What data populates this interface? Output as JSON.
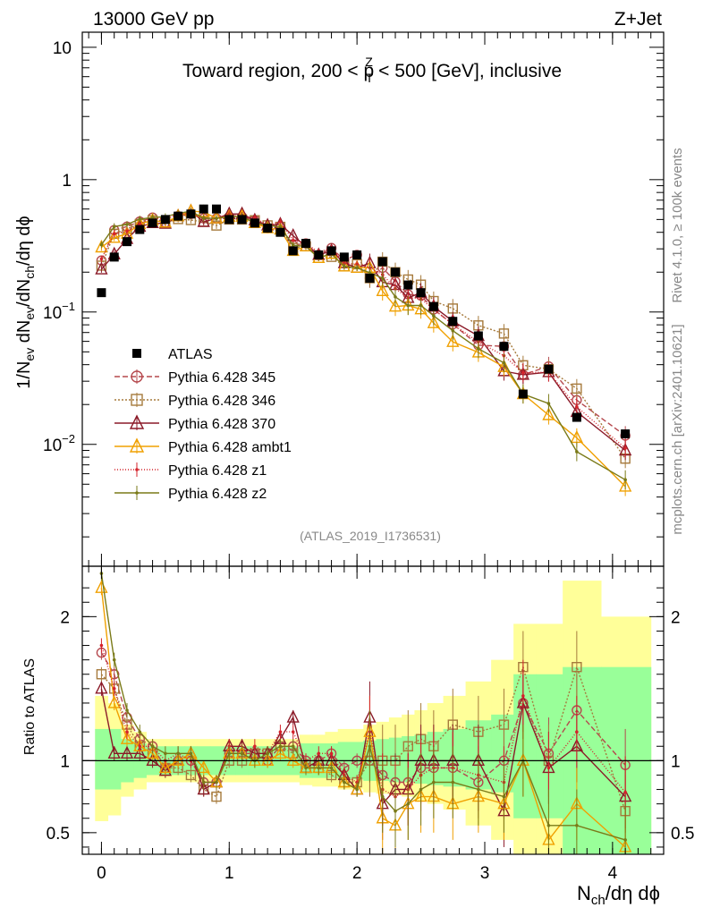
{
  "header": {
    "left": "13000 GeV pp",
    "right": "Z+Jet"
  },
  "side_text": {
    "rivet": "Rivet 4.1.0, ≥ 100k events",
    "mcplots": "mcplots.cern.ch [arXiv:2401.10621]"
  },
  "chart_data": {
    "type": "scatter",
    "title": "Toward region, 200 < p_T^Z < 500 [GeV], inclusive",
    "title_parts": {
      "a": "Toward region, 200 < p",
      "sup": "Z",
      "sub": "T",
      "b": " < 500 [GeV], inclusive"
    },
    "analysis": "(ATLAS_2019_I1736531)",
    "xlabel": "N_ch/dη dϕ",
    "xlabel_parts": {
      "a": "N",
      "sub": "ch",
      "b": "/dη dϕ"
    },
    "ylabel": "1/N_ev dN_ev/dN_ch/dη dϕ",
    "ylabel_parts": {
      "p1": "1/N",
      "s1": "ev",
      "p2": " dN",
      "s2": "ev",
      "p3": "/dN",
      "s3": "ch",
      "p4": "/dη dϕ"
    },
    "ratio_ylabel": "Ratio to ATLAS",
    "xlim": [
      -0.15,
      4.4
    ],
    "ylim": [
      0.0012,
      13
    ],
    "ratio_ylim": [
      0.35,
      2.35
    ],
    "xticks": [
      0,
      1,
      2,
      3,
      4
    ],
    "yticks": [
      {
        "value": 10,
        "label": "10"
      },
      {
        "value": 1,
        "label": "1"
      },
      {
        "value": 0.1,
        "base": "10",
        "exp": "−1"
      },
      {
        "value": 0.01,
        "base": "10",
        "exp": "−2"
      }
    ],
    "ratio_yticks": [
      0.5,
      1,
      2
    ],
    "x": [
      0.0,
      0.1,
      0.2,
      0.3,
      0.4,
      0.5,
      0.6,
      0.7,
      0.8,
      0.9,
      1.0,
      1.1,
      1.2,
      1.3,
      1.4,
      1.5,
      1.6,
      1.7,
      1.8,
      1.9,
      2.0,
      2.1,
      2.2,
      2.3,
      2.4,
      2.5,
      2.6,
      2.75,
      2.95,
      3.15,
      3.3,
      3.5,
      3.72,
      4.1
    ],
    "data": {
      "name": "ATLAS",
      "values": [
        0.14,
        0.26,
        0.34,
        0.42,
        0.47,
        0.5,
        0.53,
        0.55,
        0.6,
        0.6,
        0.5,
        0.5,
        0.47,
        0.43,
        0.4,
        0.29,
        0.33,
        0.27,
        0.29,
        0.26,
        0.27,
        0.18,
        0.24,
        0.2,
        0.16,
        0.14,
        0.11,
        0.085,
        0.066,
        0.055,
        0.024,
        0.037,
        0.016,
        0.012
      ],
      "band_inner": [
        [
          0.8,
          1.22
        ],
        [
          0.8,
          1.22
        ],
        [
          0.85,
          1.15
        ],
        [
          0.88,
          1.12
        ],
        [
          0.9,
          1.1
        ],
        [
          0.9,
          1.1
        ],
        [
          0.9,
          1.1
        ],
        [
          0.9,
          1.1
        ],
        [
          0.9,
          1.1
        ],
        [
          0.9,
          1.1
        ],
        [
          0.9,
          1.1
        ],
        [
          0.9,
          1.1
        ],
        [
          0.9,
          1.1
        ],
        [
          0.9,
          1.1
        ],
        [
          0.9,
          1.1
        ],
        [
          0.9,
          1.1
        ],
        [
          0.88,
          1.12
        ],
        [
          0.88,
          1.12
        ],
        [
          0.88,
          1.12
        ],
        [
          0.87,
          1.13
        ],
        [
          0.87,
          1.13
        ],
        [
          0.86,
          1.14
        ],
        [
          0.86,
          1.15
        ],
        [
          0.85,
          1.16
        ],
        [
          0.85,
          1.17
        ],
        [
          0.84,
          1.18
        ],
        [
          0.83,
          1.2
        ],
        [
          0.82,
          1.22
        ],
        [
          0.8,
          1.28
        ],
        [
          0.78,
          1.32
        ],
        [
          0.6,
          1.6
        ],
        [
          0.6,
          1.6
        ],
        [
          0.35,
          1.65
        ],
        [
          0.35,
          1.65
        ]
      ],
      "band_outer": [
        [
          0.58,
          1.45
        ],
        [
          0.62,
          1.4
        ],
        [
          0.75,
          1.25
        ],
        [
          0.8,
          1.2
        ],
        [
          0.85,
          1.15
        ],
        [
          0.85,
          1.15
        ],
        [
          0.85,
          1.15
        ],
        [
          0.85,
          1.15
        ],
        [
          0.85,
          1.15
        ],
        [
          0.85,
          1.15
        ],
        [
          0.85,
          1.15
        ],
        [
          0.85,
          1.15
        ],
        [
          0.85,
          1.15
        ],
        [
          0.85,
          1.15
        ],
        [
          0.85,
          1.15
        ],
        [
          0.85,
          1.15
        ],
        [
          0.83,
          1.18
        ],
        [
          0.82,
          1.18
        ],
        [
          0.82,
          1.2
        ],
        [
          0.8,
          1.22
        ],
        [
          0.8,
          1.22
        ],
        [
          0.78,
          1.25
        ],
        [
          0.77,
          1.27
        ],
        [
          0.76,
          1.3
        ],
        [
          0.75,
          1.32
        ],
        [
          0.72,
          1.35
        ],
        [
          0.7,
          1.4
        ],
        [
          0.66,
          1.45
        ],
        [
          0.55,
          1.55
        ],
        [
          0.45,
          1.7
        ],
        [
          0.35,
          1.95
        ],
        [
          0.35,
          1.95
        ],
        [
          0.35,
          2.25
        ],
        [
          0.35,
          2.0
        ]
      ]
    },
    "series": [
      {
        "name": "Pythia 6.428 345",
        "color": "#b5484d",
        "marker": "circle",
        "dash": "6,3",
        "ratio": [
          1.75,
          1.6,
          1.3,
          1.15,
          1.1,
          0.95,
          1.0,
          1.0,
          0.85,
          0.85,
          1.05,
          1.05,
          1.05,
          1.0,
          1.1,
          1.1,
          1.0,
          1.0,
          1.05,
          0.95,
          1.0,
          1.0,
          0.9,
          0.85,
          0.85,
          0.95,
          0.95,
          0.95,
          0.85,
          1.0,
          1.4,
          1.05,
          1.35,
          0.97
        ]
      },
      {
        "name": "Pythia 6.428 346",
        "color": "#a67a3c",
        "marker": "square",
        "dash": "2,2",
        "ratio": [
          1.6,
          1.5,
          1.25,
          1.1,
          1.05,
          0.95,
          0.95,
          0.9,
          0.8,
          0.75,
          1.0,
          1.0,
          1.05,
          1.05,
          1.1,
          1.05,
          0.95,
          0.95,
          0.9,
          0.85,
          0.85,
          1.0,
          1.0,
          1.0,
          1.1,
          1.15,
          1.1,
          1.25,
          1.2,
          1.25,
          1.65,
          1.0,
          1.65,
          0.65
        ]
      },
      {
        "name": "Pythia 6.428 370",
        "color": "#8b1a28",
        "marker": "triangle",
        "dash": "",
        "ratio": [
          1.5,
          1.05,
          1.05,
          1.05,
          1.0,
          0.93,
          1.0,
          1.05,
          0.8,
          0.85,
          1.1,
          1.1,
          1.05,
          1.05,
          1.15,
          1.3,
          0.95,
          1.0,
          1.0,
          0.9,
          0.8,
          1.3,
          0.7,
          0.8,
          0.8,
          1.0,
          1.0,
          1.0,
          1.0,
          0.65,
          1.4,
          0.95,
          1.1,
          0.75
        ]
      },
      {
        "name": "Pythia 6.428 ambt1",
        "color": "#f0a000",
        "marker": "triangle",
        "dash": "",
        "ratio": [
          2.2,
          1.4,
          1.15,
          1.1,
          1.05,
          0.95,
          1.0,
          1.05,
          0.95,
          0.85,
          1.05,
          1.05,
          1.0,
          1.0,
          1.05,
          1.0,
          0.95,
          0.95,
          0.95,
          0.85,
          0.8,
          1.2,
          0.6,
          0.55,
          0.7,
          0.75,
          0.75,
          0.7,
          0.75,
          0.7,
          1.0,
          0.45,
          0.7,
          0.4
        ]
      },
      {
        "name": "Pythia 6.428 z1",
        "color": "#d4232b",
        "marker": "dot",
        "dash": "1,2",
        "ratio": [
          1.8,
          1.5,
          1.2,
          1.1,
          1.1,
          1.0,
          1.05,
          1.0,
          0.85,
          0.85,
          1.1,
          1.05,
          1.1,
          1.05,
          1.2,
          1.2,
          1.0,
          1.05,
          1.05,
          0.9,
          0.85,
          1.2,
          0.8,
          0.75,
          0.8,
          0.9,
          0.95,
          0.95,
          0.9,
          0.85,
          1.45,
          0.95,
          1.2,
          0.78
        ]
      },
      {
        "name": "Pythia 6.428 z2",
        "color": "#7a7a18",
        "marker": "dot",
        "dash": "",
        "ratio": [
          2.3,
          1.7,
          1.35,
          1.2,
          1.1,
          1.05,
          1.05,
          1.05,
          0.85,
          0.85,
          1.05,
          1.05,
          1.0,
          1.05,
          1.1,
          1.1,
          0.95,
          0.95,
          0.95,
          0.85,
          0.8,
          1.1,
          0.75,
          0.65,
          0.7,
          0.8,
          0.85,
          0.85,
          0.8,
          0.75,
          1.0,
          0.55,
          0.55,
          0.45
        ]
      }
    ]
  }
}
